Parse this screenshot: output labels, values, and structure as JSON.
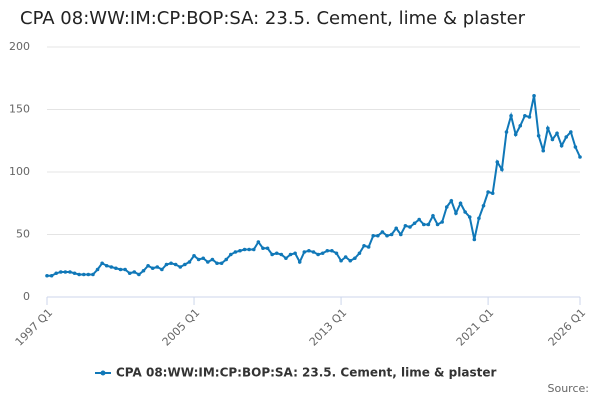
{
  "chart_data": {
    "type": "line",
    "title": "CPA 08:WW:IM:CP:BOP:SA: 23.5. Cement, lime & plaster",
    "source": "Source:",
    "categories": [
      "1997 Q1",
      null,
      null,
      null,
      null,
      null,
      null,
      null,
      null,
      null,
      null,
      null,
      null,
      null,
      null,
      null,
      null,
      null,
      null,
      null,
      null,
      null,
      null,
      null,
      null,
      null,
      null,
      null,
      null,
      null,
      null,
      null,
      "2005 Q1",
      null,
      null,
      null,
      null,
      null,
      null,
      null,
      null,
      null,
      null,
      null,
      null,
      null,
      null,
      null,
      null,
      null,
      null,
      null,
      null,
      null,
      null,
      null,
      null,
      null,
      null,
      null,
      null,
      null,
      null,
      null,
      "2013 Q1",
      null,
      null,
      null,
      null,
      null,
      null,
      null,
      null,
      null,
      null,
      null,
      null,
      null,
      null,
      null,
      null,
      null,
      null,
      null,
      null,
      null,
      null,
      null,
      null,
      null,
      null,
      null,
      null,
      null,
      null,
      null,
      "2021 Q1",
      null,
      null,
      null,
      null,
      null,
      null,
      null,
      null,
      null,
      null,
      null,
      null,
      null,
      null,
      null,
      null,
      null,
      null,
      null,
      "2026 Q1"
    ],
    "series": [
      {
        "name": "CPA 08:WW:IM:CP:BOP:SA: 23.5. Cement, lime & plaster",
        "color": "#1078b8",
        "values": [
          17,
          17,
          19,
          20,
          20,
          20,
          19,
          18,
          18,
          18,
          18,
          22,
          27,
          25,
          24,
          23,
          22,
          22,
          19,
          20,
          18,
          21,
          25,
          23,
          24,
          22,
          26,
          27,
          26,
          24,
          26,
          28,
          33,
          30,
          31,
          28,
          30,
          27,
          27,
          30,
          34,
          36,
          37,
          38,
          38,
          38,
          44,
          39,
          39,
          34,
          35,
          34,
          31,
          34,
          35,
          28,
          36,
          37,
          36,
          34,
          35,
          37,
          37,
          35,
          29,
          32,
          29,
          31,
          35,
          41,
          40,
          49,
          49,
          52,
          49,
          50,
          55,
          50,
          57,
          56,
          59,
          62,
          58,
          58,
          65,
          58,
          60,
          72,
          77,
          67,
          75,
          68,
          64,
          46,
          63,
          73,
          84,
          83,
          108,
          102,
          132,
          145,
          130,
          137,
          145,
          144,
          161,
          129,
          117,
          135,
          126,
          131,
          121,
          128,
          132,
          120,
          112
        ]
      }
    ],
    "ylim": [
      0,
      200
    ],
    "yticks": [
      0,
      50,
      100,
      150,
      200
    ],
    "grid": true,
    "legend": "bottom"
  }
}
